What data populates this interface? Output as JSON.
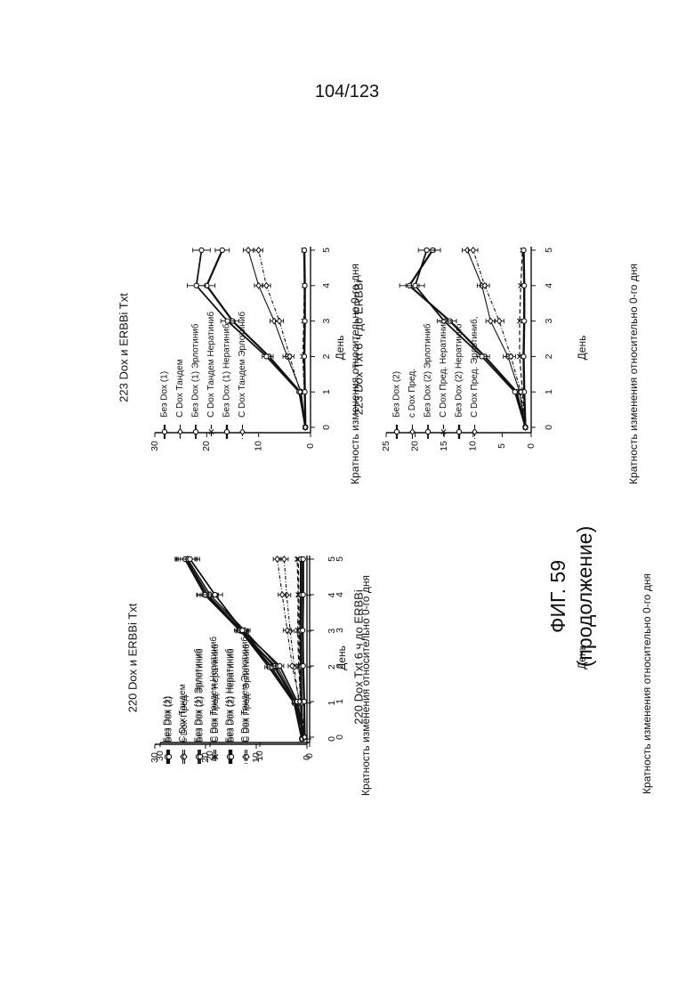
{
  "page": {
    "number": "104/123"
  },
  "figure": {
    "caption": "ФИГ. 59",
    "subcaption": "(продолжение)"
  },
  "chart_data": [
    {
      "id": "c1",
      "type": "line",
      "title": "220 Dox и ERBBi Txt",
      "xlabel": "День",
      "ylabel": "Кратность изменения относительно 0-го дня",
      "x": [
        0,
        1,
        2,
        3,
        4,
        5
      ],
      "xlim": [
        0,
        5
      ],
      "ylim": [
        0,
        30
      ],
      "yticks": [
        0,
        10,
        20,
        30
      ],
      "legend_position": "top-left",
      "series": [
        {
          "name": "Без Dox (1)",
          "marker": "circle",
          "dash": "",
          "width": 2.2,
          "values": [
            1,
            2.5,
            7.5,
            13,
            20,
            24
          ]
        },
        {
          "name": "С Dox Тандем",
          "marker": "diamond",
          "dash": "",
          "width": 1.1,
          "values": [
            1,
            2.2,
            6.5,
            12.5,
            19,
            23.5
          ]
        },
        {
          "name": "Без Dox (1) Эрлотиниб",
          "marker": "circle",
          "dash": "",
          "width": 1.8,
          "values": [
            1,
            2.4,
            7,
            12.8,
            19.5,
            23.8
          ]
        },
        {
          "name": "С Dox Тандем Нератиниб",
          "marker": "x",
          "dash": "5,3",
          "width": 1.2,
          "values": [
            1,
            1.3,
            1.5,
            1.6,
            1.6,
            1.7
          ]
        },
        {
          "name": "Без Dox (1) Нератиниб",
          "marker": "circle",
          "dash": "",
          "width": 2.4,
          "values": [
            1,
            1.1,
            1.2,
            1.3,
            1.2,
            1.2
          ]
        },
        {
          "name": "С Dox Тандем Эрлотиниб",
          "marker": "diamond",
          "dash": "4,2,1,2",
          "width": 1.1,
          "values": [
            1,
            1.6,
            2.5,
            3.3,
            4,
            4.5
          ]
        }
      ]
    },
    {
      "id": "c2",
      "type": "line",
      "title": "220 Dox Txt 6 ч до ERBBi",
      "xlabel": "День",
      "ylabel": "Кратность изменения относительно 0-го дня",
      "x": [
        0,
        1,
        2,
        3,
        4,
        5
      ],
      "xlim": [
        0,
        5
      ],
      "ylim": [
        0,
        30
      ],
      "yticks": [
        0,
        10,
        20,
        30
      ],
      "legend_position": "top-left",
      "series": [
        {
          "name": "Без Dox (2)",
          "marker": "circle",
          "dash": "",
          "width": 2.2,
          "values": [
            1,
            3,
            7,
            14,
            21,
            25
          ]
        },
        {
          "name": "с Dox Пред.",
          "marker": "diamond",
          "dash": "",
          "width": 1.1,
          "values": [
            1,
            2.8,
            6.5,
            13,
            20,
            24.5
          ]
        },
        {
          "name": "Без Dox (2) Эрлотиниб",
          "marker": "circle",
          "dash": "",
          "width": 1.8,
          "values": [
            1,
            2.5,
            6,
            13.5,
            19,
            24
          ]
        },
        {
          "name": "С Dox Пред. Нератиниб",
          "marker": "x",
          "dash": "5,3",
          "width": 1.2,
          "values": [
            1,
            1.8,
            2.2,
            2.4,
            2.3,
            2.5
          ]
        },
        {
          "name": "Без Dox (2) Нератиниб",
          "marker": "circle",
          "dash": "",
          "width": 2.4,
          "values": [
            1,
            1.1,
            1.3,
            1.4,
            1.3,
            1.3
          ]
        },
        {
          "name": "С Dox Пред. Эрлотиниб",
          "marker": "diamond",
          "dash": "4,2,1,2",
          "width": 1.1,
          "values": [
            1,
            2,
            3.5,
            4.5,
            5.5,
            6.5
          ]
        }
      ]
    },
    {
      "id": "c3",
      "type": "line",
      "title": "223 Dox и ERBBi Txt",
      "xlabel": "День",
      "ylabel": "Кратность изменения относительно 0-го дня",
      "x": [
        0,
        1,
        2,
        3,
        4,
        5
      ],
      "xlim": [
        0,
        5
      ],
      "ylim": [
        0,
        30
      ],
      "yticks": [
        0,
        10,
        20,
        30
      ],
      "legend_position": "top-left",
      "series": [
        {
          "name": "Без Dox (1)",
          "marker": "circle",
          "dash": "",
          "width": 2.2,
          "values": [
            1,
            2,
            8,
            15,
            20,
            17
          ]
        },
        {
          "name": "С Dox Тандем",
          "marker": "diamond",
          "dash": "",
          "width": 1.1,
          "values": [
            1,
            1.8,
            4.5,
            7,
            10,
            12
          ]
        },
        {
          "name": "Без Dox (1) Эрлотиниб",
          "marker": "circle",
          "dash": "",
          "width": 1.8,
          "values": [
            1,
            2.2,
            8.5,
            16,
            22,
            21
          ]
        },
        {
          "name": "С Dox Тандем Нератиниб",
          "marker": "x",
          "dash": "5,3",
          "width": 1.2,
          "values": [
            1,
            1.2,
            1.5,
            1.3,
            1.2,
            1.3
          ]
        },
        {
          "name": "Без Dox (1) Нератиниб",
          "marker": "circle",
          "dash": "",
          "width": 2.4,
          "values": [
            1,
            1.1,
            1.2,
            1.1,
            1.1,
            1.2
          ]
        },
        {
          "name": "С Dox Тандем Эрлотиниб",
          "marker": "diamond",
          "dash": "4,2,1,2",
          "width": 1.1,
          "values": [
            1,
            2,
            4,
            6,
            8.5,
            10
          ]
        }
      ]
    },
    {
      "id": "c4",
      "type": "line",
      "title": "223 Dox Txt 6 ч до ERBBi",
      "xlabel": "День",
      "ylabel": "Кратность изменения относительно 0-го дня",
      "x": [
        0,
        1,
        2,
        3,
        4,
        5
      ],
      "xlim": [
        0,
        5
      ],
      "ylim": [
        0,
        25
      ],
      "yticks": [
        0,
        5,
        10,
        15,
        20,
        25
      ],
      "legend_position": "top-left",
      "series": [
        {
          "name": "Без Dox (2)",
          "marker": "circle",
          "dash": "",
          "width": 2.2,
          "values": [
            1,
            2.5,
            8,
            14,
            21,
            17
          ]
        },
        {
          "name": "с Dox Пред.",
          "marker": "diamond",
          "dash": "",
          "width": 1.1,
          "values": [
            1,
            2,
            4,
            7,
            8.5,
            11
          ]
        },
        {
          "name": "Без Dox (2) Эрлотиниб",
          "marker": "circle",
          "dash": "",
          "width": 1.8,
          "values": [
            1,
            2.8,
            8.5,
            15,
            20,
            18
          ]
        },
        {
          "name": "С Dox Пред. Нератиниб",
          "marker": "x",
          "dash": "5,3",
          "width": 1.2,
          "values": [
            1,
            1.5,
            2,
            2,
            1.8,
            1.5
          ]
        },
        {
          "name": "Без Dox (2) Нератиниб",
          "marker": "circle",
          "dash": "",
          "width": 2.4,
          "values": [
            1,
            1.2,
            1.3,
            1.2,
            1.2,
            1.3
          ]
        },
        {
          "name": "С Dox Пред. Эрлотиниб,",
          "marker": "diamond",
          "dash": "4,2,1,2",
          "width": 1.1,
          "values": [
            1,
            1.8,
            3.5,
            5.5,
            8,
            10
          ]
        }
      ]
    }
  ]
}
